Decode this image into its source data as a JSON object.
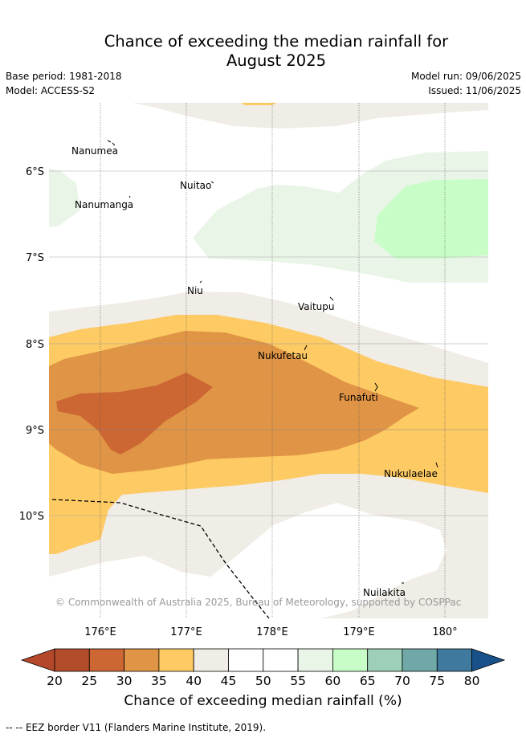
{
  "header": {
    "title_line1": "Chance of exceeding the median rainfall for",
    "title_line2": "August 2025",
    "base_period": "Base period: 1981-2018",
    "model": "Model: ACCESS-S2",
    "model_run": "Model run: 09/06/2025",
    "issued": "Issued: 11/06/2025"
  },
  "map": {
    "lat_labels": [
      "6°S",
      "7°S",
      "8°S",
      "9°S",
      "10°S"
    ],
    "lon_labels": [
      "176°E",
      "177°E",
      "178°E",
      "179°E",
      "180°"
    ],
    "islands": [
      {
        "name": "Nanumea"
      },
      {
        "name": "Nuitao"
      },
      {
        "name": "Nanumanga"
      },
      {
        "name": "Niu"
      },
      {
        "name": "Vaitupu"
      },
      {
        "name": "Nukufetau"
      },
      {
        "name": "Funafuti"
      },
      {
        "name": "Nukulaelae"
      },
      {
        "name": "Nuilakita"
      }
    ],
    "copyright": "© Commonwealth of Australia 2025, Bureau of Meteorology, supported by COSPPac"
  },
  "colorbar": {
    "ticks": [
      "20",
      "25",
      "30",
      "35",
      "40",
      "45",
      "50",
      "55",
      "60",
      "65",
      "70",
      "75",
      "80"
    ],
    "colors": {
      "below20": "#b5472a",
      "b20_25": "#b34c28",
      "b25_30": "#cc6632",
      "b30_35": "#e09445",
      "b35_40": "#fdca63",
      "b40_45": "#f0ece6",
      "b45_50": "#ffffff",
      "b50_55": "#ffffff",
      "b55_60": "#e9f5e7",
      "b60_65": "#c9fdc8",
      "b65_70": "#9ecfb8",
      "b70_75": "#70a8a8",
      "b75_80": "#3f7a9e",
      "above80": "#18508a"
    },
    "title": "Chance of exceeding median rainfall (%)"
  },
  "legend": {
    "eez": "-- EEZ border V11 (Flanders Marine Institute, 2019)."
  }
}
